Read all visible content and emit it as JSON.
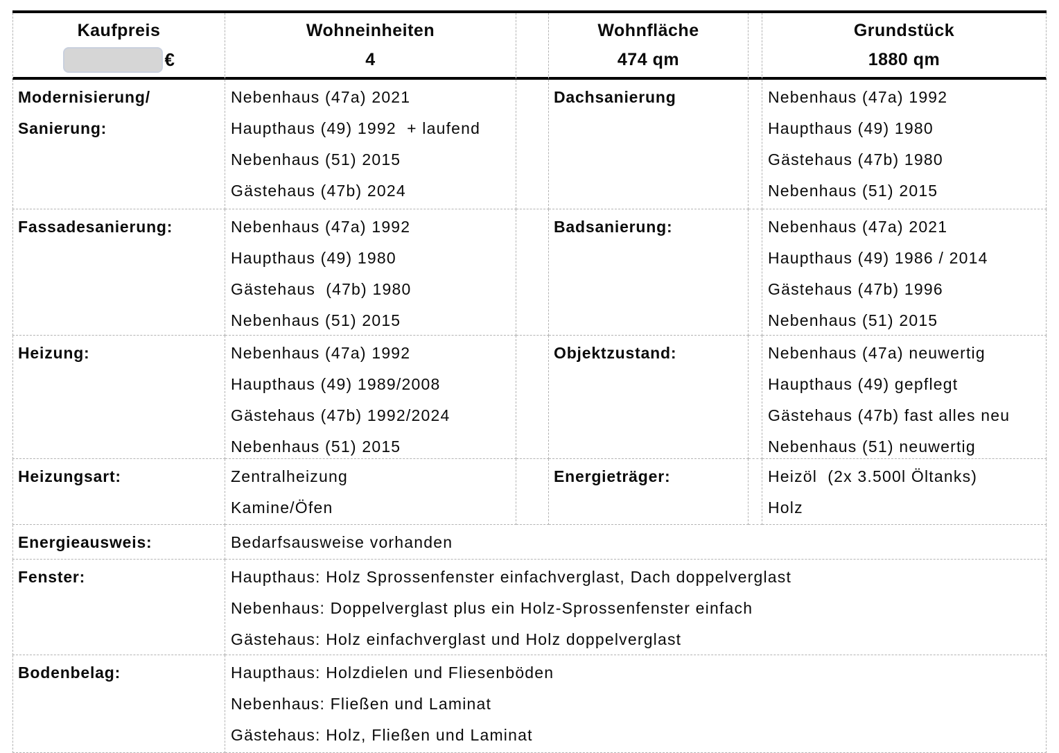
{
  "colors": {
    "thick_rule": "#000000",
    "dashed_grid": "#b3b3b3",
    "redaction_fill": "#d6d6d6",
    "redaction_border": "#c9d0de"
  },
  "header": {
    "kaufpreis": {
      "label": "Kaufpreis",
      "currency": "€",
      "value_redacted": true
    },
    "wohneinheiten": {
      "label": "Wohneinheiten",
      "value": "4"
    },
    "wohnflaeche": {
      "label": "Wohnfläche",
      "value": "474 qm"
    },
    "grundstueck": {
      "label": "Grundstück",
      "value": "1880 qm"
    }
  },
  "rows": {
    "modernisierung": {
      "label": "Modernisierung/\nSanierung:",
      "values": [
        "Nebenhaus (47a) 2021",
        "Haupthaus (49) 1992  + laufend",
        "Nebenhaus (51) 2015",
        "Gästehaus (47b) 2024"
      ]
    },
    "dachsanierung": {
      "label": "Dachsanierung",
      "values": [
        "Nebenhaus (47a) 1992",
        "Haupthaus (49) 1980",
        "Gästehaus (47b) 1980",
        "Nebenhaus (51) 2015"
      ]
    },
    "fassadesanierung": {
      "label": "Fassadesanierung:",
      "values": [
        "Nebenhaus (47a) 1992",
        "Haupthaus (49) 1980",
        "Gästehaus  (47b) 1980",
        "Nebenhaus (51) 2015"
      ]
    },
    "badsanierung": {
      "label": "Badsanierung:",
      "values": [
        "Nebenhaus (47a) 2021",
        "Haupthaus (49) 1986 / 2014",
        "Gästehaus (47b) 1996",
        "Nebenhaus (51) 2015"
      ]
    },
    "heizung": {
      "label": "Heizung:",
      "values": [
        "Nebenhaus (47a) 1992",
        "Haupthaus (49) 1989/2008",
        "Gästehaus (47b) 1992/2024",
        "Nebenhaus (51) 2015"
      ]
    },
    "objektzustand": {
      "label": "Objektzustand:",
      "values": [
        "Nebenhaus (47a) neuwertig",
        "Haupthaus (49) gepflegt",
        "Gästehaus (47b) fast alles neu",
        "Nebenhaus (51) neuwertig"
      ]
    },
    "heizungsart": {
      "label": "Heizungsart:",
      "values": [
        "Zentralheizung",
        "Kamine/Öfen"
      ]
    },
    "energietraeger": {
      "label": "Energieträger:",
      "values": [
        "Heizöl  (2x 3.500l Öltanks)",
        "Holz"
      ]
    },
    "energieausweis": {
      "label": "Energieausweis:",
      "values": [
        "Bedarfsausweise vorhanden"
      ]
    },
    "fenster": {
      "label": "Fenster:",
      "values": [
        "Haupthaus: Holz Sprossenfenster einfachverglast, Dach doppelverglast",
        "Nebenhaus: Doppelverglast plus ein Holz-Sprossenfenster einfach",
        "Gästehaus: Holz einfachverglast und Holz doppelverglast"
      ]
    },
    "bodenbelag": {
      "label": "Bodenbelag:",
      "values": [
        "Haupthaus: Holzdielen und Fliesenböden",
        "Nebenhaus: Fließen und Laminat",
        "Gästehaus: Holz, Fließen und Laminat"
      ]
    }
  }
}
